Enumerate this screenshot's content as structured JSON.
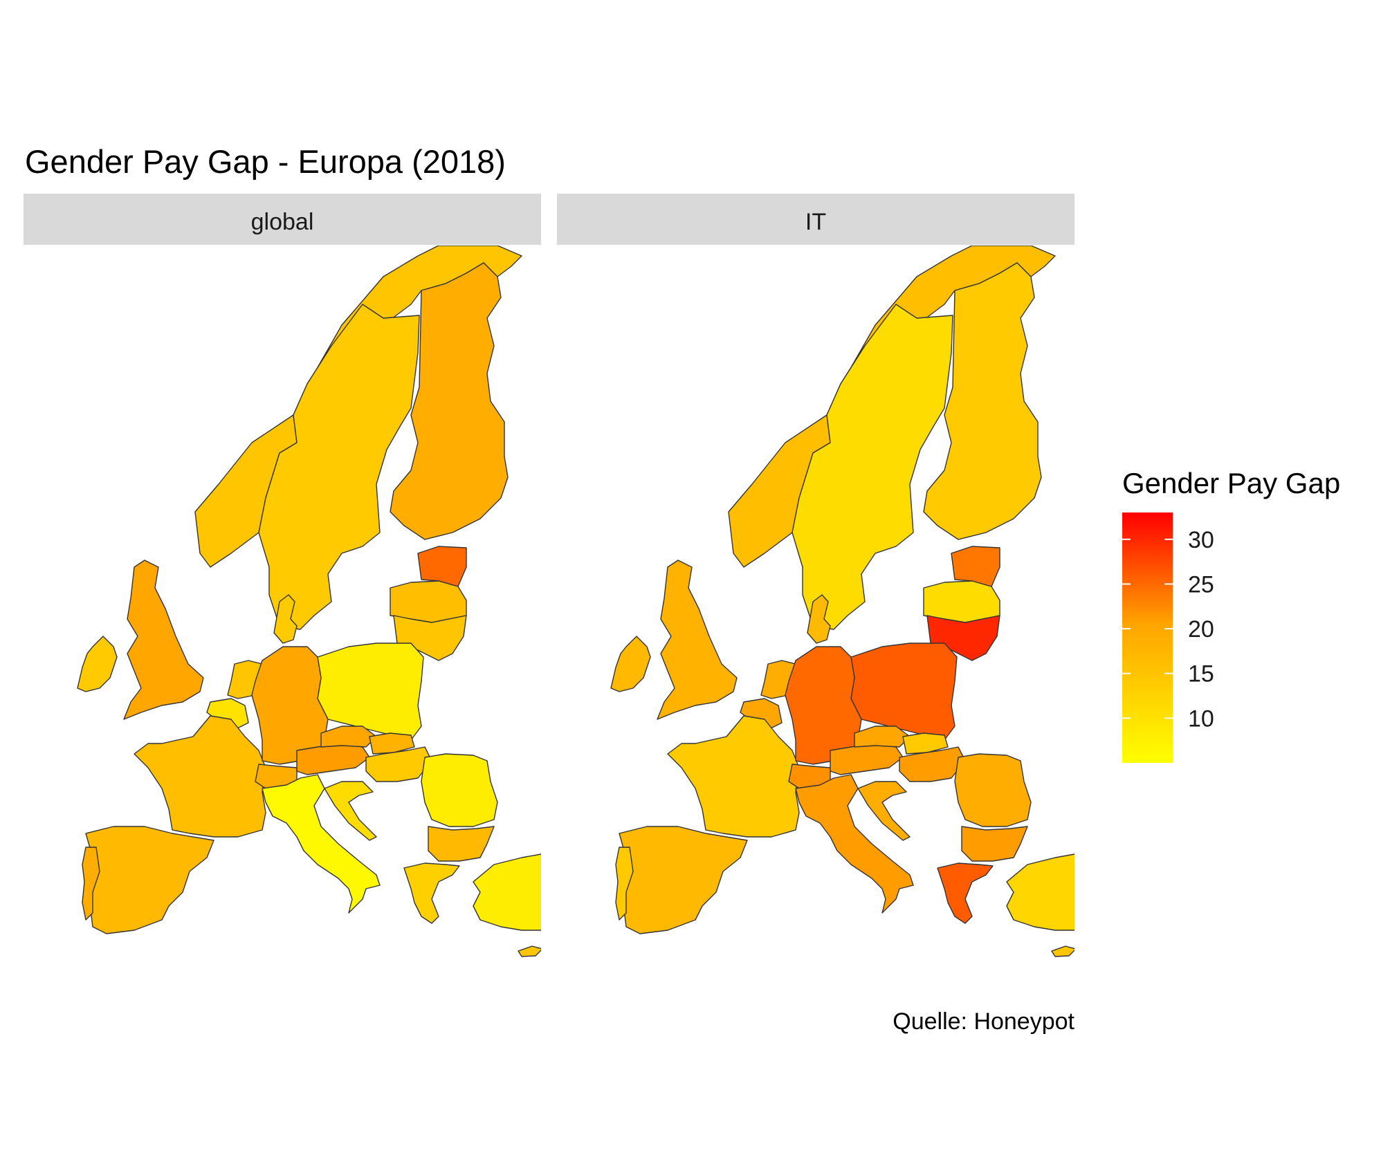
{
  "title": "Gender Pay Gap - Europa (2018)",
  "caption": "Quelle: Honeypot",
  "legend": {
    "title": "Gender Pay Gap",
    "ticks": [
      10,
      15,
      20,
      25,
      30
    ],
    "scale_min": 5,
    "scale_max": 33,
    "colors": {
      "low": "#ffff00",
      "mid": "#ffa500",
      "high": "#ff0000"
    }
  },
  "panels": [
    {
      "label": "global",
      "values": {
        "norway": 15,
        "sweden": 14,
        "finland": 19,
        "estonia": 25,
        "latvia": 16,
        "lithuania": 15,
        "poland": 8,
        "germany": 20,
        "denmark": 14,
        "uk": 20,
        "ireland": 14,
        "netherlands": 15,
        "belgium": 10,
        "france": 16,
        "spain": 17,
        "portugal": 19,
        "switzerland": 19,
        "austria": 21,
        "italy": 6,
        "czechia": 20,
        "slovakia": 18,
        "hungary": 14,
        "croatia": 11,
        "romania": 8,
        "bulgaria": 17,
        "greece": 13,
        "turkey": 8,
        "cyprus": 15
      }
    },
    {
      "label": "IT",
      "values": {
        "norway": 16,
        "sweden": 11,
        "finland": 14,
        "estonia": 24,
        "latvia": 11,
        "lithuania": 30,
        "poland": 26,
        "germany": 25,
        "denmark": 17,
        "uk": 18,
        "ireland": 17,
        "netherlands": 19,
        "belgium": 20,
        "france": 14,
        "spain": 17,
        "portugal": 14,
        "switzerland": 22,
        "austria": 21,
        "italy": 21,
        "czechia": 20,
        "slovakia": 14,
        "hungary": 21,
        "croatia": 19,
        "romania": 19,
        "bulgaria": 21,
        "greece": 26,
        "turkey": 12,
        "cyprus": 15
      }
    }
  ]
}
